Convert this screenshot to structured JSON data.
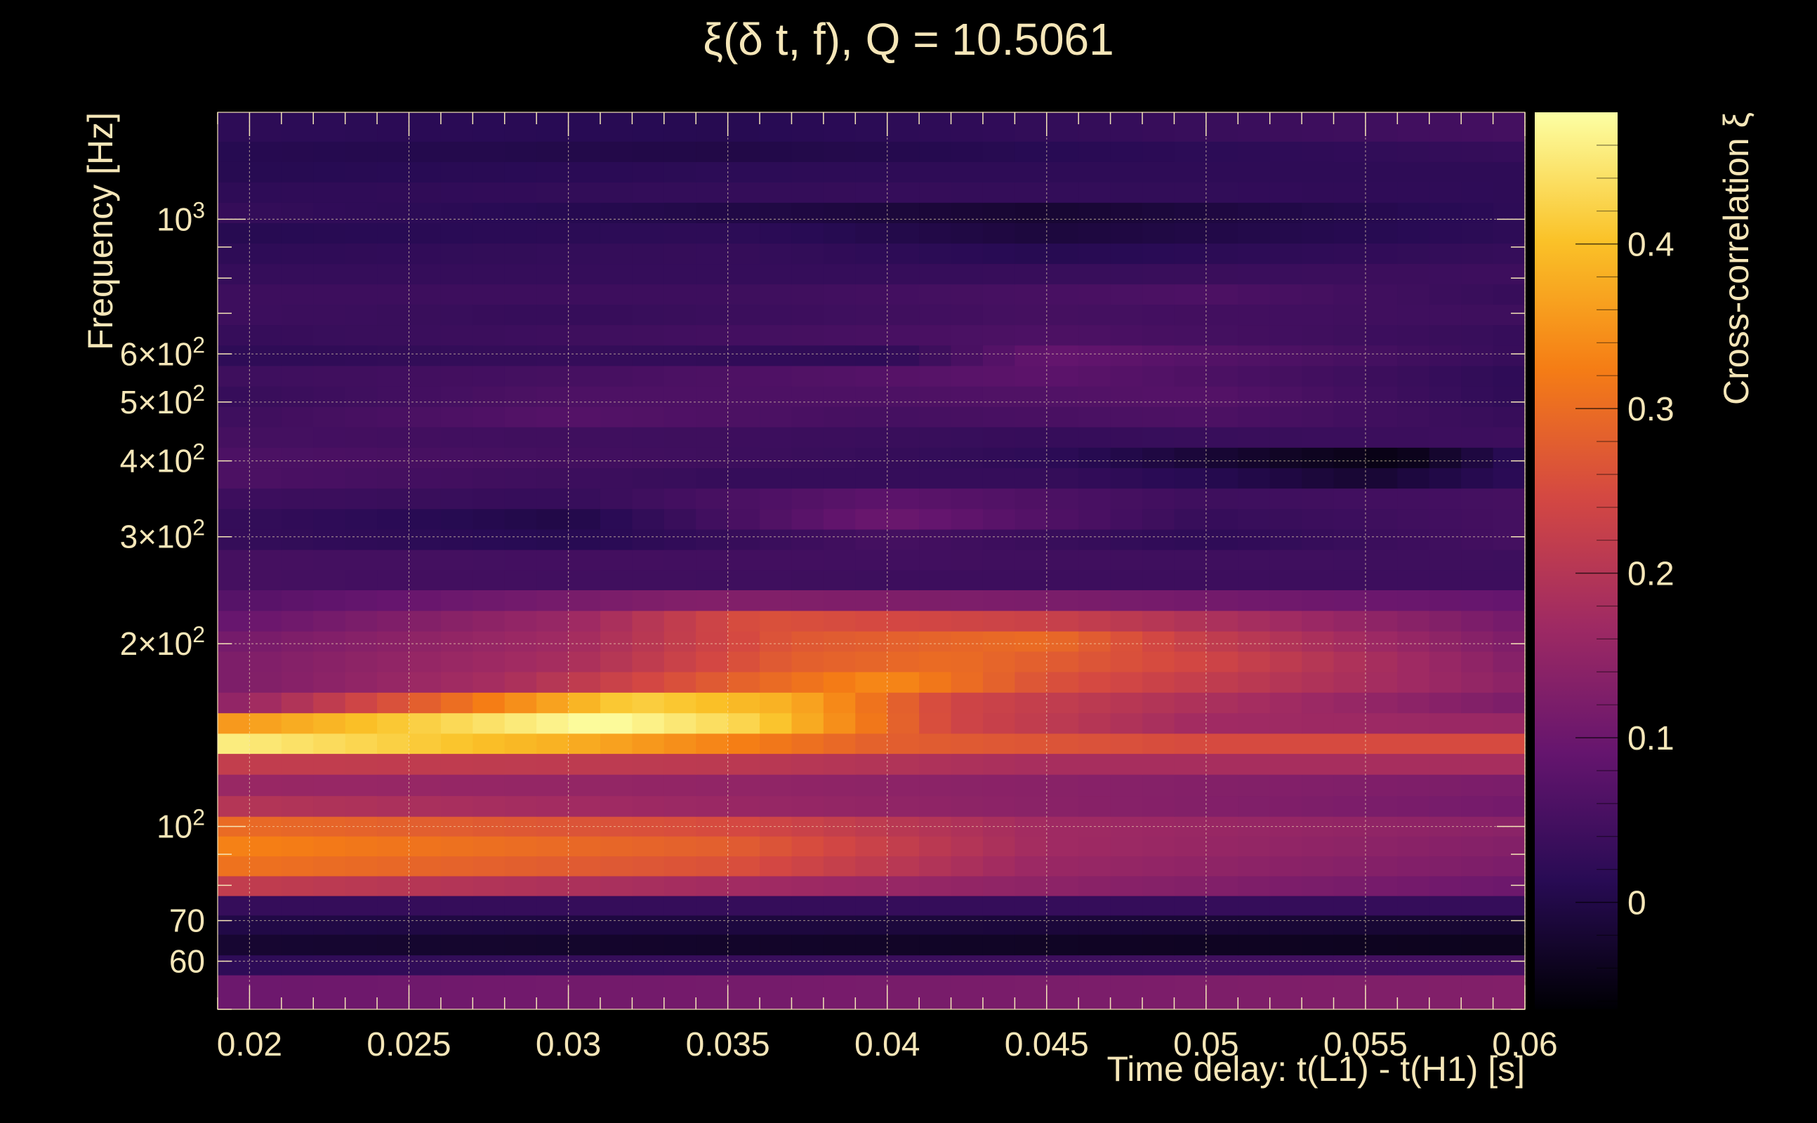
{
  "chart_data": {
    "type": "heatmap",
    "title": "ξ(δ t, f), Q = 10.5061",
    "xlabel": "Time delay: t(L1) - t(H1) [s]",
    "ylabel": "Frequency [Hz]",
    "colorbar_label": "Cross-correlation ξ",
    "xlim": [
      0.019,
      0.06
    ],
    "ylim": [
      50,
      1500
    ],
    "y_scale": "log",
    "grid": true,
    "colorbar_range": [
      -0.065,
      0.48
    ],
    "x_ticks": [
      {
        "value": 0.02,
        "label": "0.02"
      },
      {
        "value": 0.025,
        "label": "0.025"
      },
      {
        "value": 0.03,
        "label": "0.03"
      },
      {
        "value": 0.035,
        "label": "0.035"
      },
      {
        "value": 0.04,
        "label": "0.04"
      },
      {
        "value": 0.045,
        "label": "0.045"
      },
      {
        "value": 0.05,
        "label": "0.05"
      },
      {
        "value": 0.055,
        "label": "0.055"
      },
      {
        "value": 0.06,
        "label": "0.06"
      }
    ],
    "y_ticks": [
      {
        "value": 60,
        "label": "60"
      },
      {
        "value": 70,
        "label": "70"
      },
      {
        "value": 100,
        "base": "10",
        "exp": "2"
      },
      {
        "value": 200,
        "base": "2×10",
        "exp": "2"
      },
      {
        "value": 300,
        "base": "3×10",
        "exp": "2"
      },
      {
        "value": 400,
        "base": "4×10",
        "exp": "2"
      },
      {
        "value": 500,
        "base": "5×10",
        "exp": "2"
      },
      {
        "value": 600,
        "base": "6×10",
        "exp": "2"
      },
      {
        "value": 1000,
        "base": "10",
        "exp": "3"
      }
    ],
    "colorbar_ticks": [
      {
        "value": 0,
        "label": "0"
      },
      {
        "value": 0.1,
        "label": "0.1"
      },
      {
        "value": 0.2,
        "label": "0.2"
      },
      {
        "value": 0.3,
        "label": "0.3"
      },
      {
        "value": 0.4,
        "label": "0.4"
      }
    ],
    "colormap": [
      "#000004",
      "#280b54",
      "#65156e",
      "#9f2a63",
      "#d44842",
      "#f57d15",
      "#fac228",
      "#fcffa4"
    ],
    "rows": [
      {
        "freq": 55,
        "t": [
          0.019,
          0.06
        ],
        "v": [
          0.1,
          0.13
        ]
      },
      {
        "freq": 59,
        "t": [
          0.019,
          0.06
        ],
        "v": [
          0.02,
          0.05
        ]
      },
      {
        "freq": 64,
        "t": [
          0.019,
          0.06
        ],
        "v": [
          -0.02,
          -0.04
        ]
      },
      {
        "freq": 69,
        "t": [
          0.019,
          0.06
        ],
        "v": [
          0.0,
          -0.02
        ]
      },
      {
        "freq": 74,
        "t": [
          0.019,
          0.06
        ],
        "v": [
          0.03,
          0.03
        ]
      },
      {
        "freq": 80,
        "t": [
          0.019,
          0.06
        ],
        "v": [
          0.22,
          0.1
        ]
      },
      {
        "freq": 86,
        "t": [
          0.019,
          0.035,
          0.045,
          0.06
        ],
        "v": [
          0.31,
          0.26,
          0.16,
          0.12
        ]
      },
      {
        "freq": 93,
        "t": [
          0.019,
          0.035,
          0.045,
          0.06
        ],
        "v": [
          0.33,
          0.28,
          0.17,
          0.13
        ]
      },
      {
        "freq": 100,
        "t": [
          0.019,
          0.035,
          0.045,
          0.06
        ],
        "v": [
          0.3,
          0.25,
          0.17,
          0.14
        ]
      },
      {
        "freq": 108,
        "t": [
          0.019,
          0.035,
          0.06
        ],
        "v": [
          0.2,
          0.16,
          0.11
        ]
      },
      {
        "freq": 117,
        "t": [
          0.019,
          0.035,
          0.06
        ],
        "v": [
          0.16,
          0.15,
          0.12
        ]
      },
      {
        "freq": 127,
        "t": [
          0.019,
          0.035,
          0.045,
          0.06
        ],
        "v": [
          0.22,
          0.21,
          0.18,
          0.18
        ]
      },
      {
        "freq": 137,
        "t": [
          0.019,
          0.03,
          0.04,
          0.05,
          0.06
        ],
        "v": [
          0.46,
          0.38,
          0.28,
          0.25,
          0.25
        ]
      },
      {
        "freq": 148,
        "t": [
          0.019,
          0.031,
          0.036,
          0.042,
          0.05,
          0.06
        ],
        "v": [
          0.35,
          0.48,
          0.42,
          0.24,
          0.17,
          0.16
        ]
      },
      {
        "freq": 160,
        "t": [
          0.019,
          0.025,
          0.032,
          0.037,
          0.042,
          0.06
        ],
        "v": [
          0.14,
          0.27,
          0.42,
          0.38,
          0.24,
          0.12
        ]
      },
      {
        "freq": 173,
        "t": [
          0.019,
          0.028,
          0.035,
          0.04,
          0.045,
          0.06
        ],
        "v": [
          0.12,
          0.18,
          0.28,
          0.34,
          0.26,
          0.14
        ]
      },
      {
        "freq": 187,
        "t": [
          0.019,
          0.03,
          0.037,
          0.042,
          0.05,
          0.06
        ],
        "v": [
          0.12,
          0.18,
          0.28,
          0.3,
          0.24,
          0.13
        ]
      },
      {
        "freq": 202,
        "t": [
          0.019,
          0.03,
          0.037,
          0.045,
          0.05,
          0.06
        ],
        "v": [
          0.11,
          0.17,
          0.27,
          0.3,
          0.22,
          0.12
        ]
      },
      {
        "freq": 218,
        "t": [
          0.019,
          0.03,
          0.036,
          0.045,
          0.06
        ],
        "v": [
          0.09,
          0.16,
          0.26,
          0.23,
          0.11
        ]
      },
      {
        "freq": 236,
        "t": [
          0.019,
          0.034,
          0.045,
          0.06
        ],
        "v": [
          0.07,
          0.13,
          0.12,
          0.09
        ]
      },
      {
        "freq": 255,
        "t": [
          0.019,
          0.04,
          0.06
        ],
        "v": [
          0.05,
          0.04,
          0.04
        ]
      },
      {
        "freq": 275,
        "t": [
          0.019,
          0.06
        ],
        "v": [
          0.05,
          0.04
        ]
      },
      {
        "freq": 297,
        "t": [
          0.019,
          0.03,
          0.04,
          0.05,
          0.06
        ],
        "v": [
          0.03,
          0.01,
          0.05,
          0.02,
          0.05
        ]
      },
      {
        "freq": 321,
        "t": [
          0.019,
          0.03,
          0.04,
          0.05,
          0.06
        ],
        "v": [
          0.03,
          0.0,
          0.1,
          0.03,
          0.05
        ]
      },
      {
        "freq": 347,
        "t": [
          0.019,
          0.03,
          0.04,
          0.05,
          0.06
        ],
        "v": [
          0.04,
          0.03,
          0.08,
          0.04,
          0.05
        ]
      },
      {
        "freq": 375,
        "t": [
          0.019,
          0.035,
          0.045,
          0.05,
          0.055,
          0.06
        ],
        "v": [
          0.06,
          0.03,
          0.03,
          0.01,
          -0.02,
          0.02
        ]
      },
      {
        "freq": 405,
        "t": [
          0.019,
          0.035,
          0.045,
          0.052,
          0.056,
          0.06
        ],
        "v": [
          0.06,
          0.04,
          0.02,
          -0.03,
          -0.05,
          0.02
        ]
      },
      {
        "freq": 438,
        "t": [
          0.019,
          0.035,
          0.045,
          0.06
        ],
        "v": [
          0.05,
          0.04,
          0.03,
          0.04
        ]
      },
      {
        "freq": 473,
        "t": [
          0.019,
          0.03,
          0.04,
          0.05,
          0.06
        ],
        "v": [
          0.04,
          0.07,
          0.05,
          0.06,
          0.03
        ]
      },
      {
        "freq": 511,
        "t": [
          0.019,
          0.03,
          0.04,
          0.05,
          0.06
        ],
        "v": [
          0.03,
          0.06,
          0.06,
          0.07,
          0.02
        ]
      },
      {
        "freq": 552,
        "t": [
          0.019,
          0.03,
          0.045,
          0.06
        ],
        "v": [
          0.04,
          0.05,
          0.08,
          0.02
        ]
      },
      {
        "freq": 597,
        "t": [
          0.019,
          0.03,
          0.04,
          0.045,
          0.06
        ],
        "v": [
          0.02,
          0.03,
          0.02,
          0.09,
          0.03
        ]
      },
      {
        "freq": 645,
        "t": [
          0.019,
          0.03,
          0.045,
          0.06
        ],
        "v": [
          0.03,
          0.04,
          0.06,
          0.03
        ]
      },
      {
        "freq": 697,
        "t": [
          0.019,
          0.03,
          0.045,
          0.06
        ],
        "v": [
          0.04,
          0.03,
          0.05,
          0.04
        ]
      },
      {
        "freq": 753,
        "t": [
          0.019,
          0.035,
          0.05,
          0.06
        ],
        "v": [
          0.04,
          0.04,
          0.06,
          0.03
        ]
      },
      {
        "freq": 813,
        "t": [
          0.019,
          0.04,
          0.06
        ],
        "v": [
          0.03,
          0.03,
          0.04
        ]
      },
      {
        "freq": 879,
        "t": [
          0.019,
          0.035,
          0.045,
          0.06
        ],
        "v": [
          0.02,
          0.03,
          0.01,
          0.03
        ]
      },
      {
        "freq": 949,
        "t": [
          0.019,
          0.035,
          0.045,
          0.06
        ],
        "v": [
          0.01,
          0.02,
          -0.01,
          0.02
        ]
      },
      {
        "freq": 1026,
        "t": [
          0.019,
          0.03,
          0.045,
          0.06
        ],
        "v": [
          0.03,
          0.01,
          -0.02,
          0.02
        ]
      },
      {
        "freq": 1108,
        "t": [
          0.019,
          0.04,
          0.06
        ],
        "v": [
          0.02,
          0.03,
          0.02
        ]
      },
      {
        "freq": 1197,
        "t": [
          0.019,
          0.04,
          0.06
        ],
        "v": [
          0.01,
          0.02,
          0.02
        ]
      },
      {
        "freq": 1293,
        "t": [
          0.019,
          0.035,
          0.06
        ],
        "v": [
          0.01,
          0.0,
          0.03
        ]
      },
      {
        "freq": 1397,
        "t": [
          0.019,
          0.035,
          0.06
        ],
        "v": [
          0.02,
          0.01,
          0.05
        ]
      }
    ]
  }
}
